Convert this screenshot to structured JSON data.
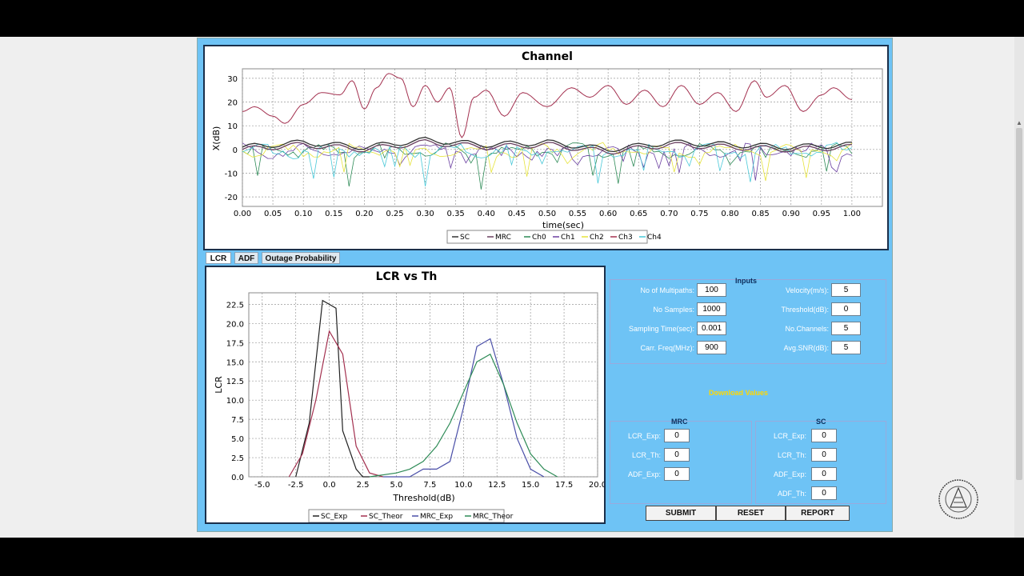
{
  "channel_chart": {
    "title": "Channel",
    "xlabel": "time(sec)",
    "ylabel": "X(dB)",
    "legend": [
      "SC",
      "MRC",
      "Ch0",
      "Ch1",
      "Ch2",
      "Ch3",
      "Ch4"
    ],
    "colors": {
      "SC": "#333333",
      "MRC": "#6a4060",
      "Ch0": "#2e8b57",
      "Ch1": "#6a3fa0",
      "Ch2": "#e6e33a",
      "Ch3": "#a3304f",
      "Ch4": "#48c8d8"
    },
    "xticks": [
      "0.00",
      "0.05",
      "0.10",
      "0.15",
      "0.20",
      "0.25",
      "0.30",
      "0.35",
      "0.40",
      "0.45",
      "0.50",
      "0.55",
      "0.60",
      "0.65",
      "0.70",
      "0.75",
      "0.80",
      "0.85",
      "0.90",
      "0.95",
      "1.00"
    ],
    "yticks": [
      "30",
      "20",
      "10",
      "0",
      "-10",
      "-20"
    ]
  },
  "chart_data": [
    {
      "type": "line",
      "title": "Channel",
      "xlabel": "time(sec)",
      "ylabel": "X(dB)",
      "xlim": [
        0,
        1.05
      ],
      "ylim": [
        -24,
        34
      ],
      "series": [
        {
          "name": "Ch3",
          "x": [
            0,
            0.02,
            0.05,
            0.07,
            0.1,
            0.13,
            0.16,
            0.18,
            0.2,
            0.22,
            0.24,
            0.26,
            0.28,
            0.3,
            0.32,
            0.34,
            0.36,
            0.38,
            0.4,
            0.43,
            0.46,
            0.5,
            0.54,
            0.57,
            0.6,
            0.63,
            0.66,
            0.69,
            0.72,
            0.75,
            0.78,
            0.81,
            0.84,
            0.86,
            0.89,
            0.92,
            0.95,
            0.97,
            1.0
          ],
          "y": [
            16,
            18,
            14,
            11,
            19,
            24,
            23,
            29,
            17,
            26,
            32,
            30,
            18,
            27,
            20,
            26,
            5,
            22,
            25,
            14,
            24,
            18,
            26,
            22,
            27,
            19,
            25,
            18,
            27,
            19,
            24,
            16,
            29,
            22,
            27,
            16,
            23,
            26,
            21
          ]
        },
        {
          "name": "SC",
          "x": [
            0,
            0.1,
            0.2,
            0.3,
            0.4,
            0.5,
            0.6,
            0.7,
            0.8,
            0.9,
            1.0
          ],
          "y": [
            1,
            3,
            1,
            4,
            2,
            3,
            0,
            3,
            2,
            1,
            2
          ]
        },
        {
          "name": "MRC",
          "x": [
            0,
            0.1,
            0.2,
            0.3,
            0.4,
            0.5,
            0.6,
            0.7,
            0.8,
            0.9,
            1.0
          ],
          "y": [
            0,
            2,
            0,
            3,
            1,
            2,
            -1,
            2,
            1,
            0,
            1
          ]
        }
      ]
    },
    {
      "type": "line",
      "title": "LCR vs Th",
      "xlabel": "Threshold(dB)",
      "ylabel": "LCR",
      "xlim": [
        -6,
        20
      ],
      "ylim": [
        0,
        24
      ],
      "series": [
        {
          "name": "SC_Exp",
          "x": [
            -2.5,
            -1.5,
            -0.5,
            0.5,
            1.0,
            2.0,
            2.5,
            3.0
          ],
          "y": [
            0,
            7,
            23,
            22,
            6,
            1,
            0,
            0
          ]
        },
        {
          "name": "SC_Theor",
          "x": [
            -3,
            -2,
            -1,
            0,
            1,
            2,
            3,
            4
          ],
          "y": [
            0,
            3,
            10,
            19,
            16,
            4,
            0.5,
            0
          ]
        },
        {
          "name": "MRC_Exp",
          "x": [
            4,
            6,
            7,
            8,
            9,
            10,
            11,
            12,
            13,
            14,
            15,
            16
          ],
          "y": [
            0,
            0,
            1,
            1,
            2,
            9,
            17,
            18,
            12,
            5,
            1,
            0
          ]
        },
        {
          "name": "MRC_Theor",
          "x": [
            3,
            5,
            6,
            7,
            8,
            9,
            10,
            11,
            12,
            13,
            14,
            15,
            16,
            17
          ],
          "y": [
            0,
            0.5,
            1,
            2,
            4,
            7,
            11,
            15,
            16,
            12,
            7,
            3,
            1,
            0
          ]
        }
      ]
    }
  ],
  "lcr_chart": {
    "title": "LCR vs Th",
    "xlabel": "Threshold(dB)",
    "ylabel": "LCR",
    "legend": [
      "SC_Exp",
      "SC_Theor",
      "MRC_Exp",
      "MRC_Theor"
    ],
    "colors": {
      "SC_Exp": "#222222",
      "SC_Theor": "#a3304f",
      "MRC_Exp": "#4a4fa8",
      "MRC_Theor": "#2e8b57"
    },
    "xticks": [
      "-5.0",
      "-2.5",
      "0.0",
      "2.5",
      "5.0",
      "7.5",
      "10.0",
      "12.5",
      "15.0",
      "17.5",
      "20.0"
    ],
    "yticks": [
      "22.5",
      "20.0",
      "17.5",
      "15.0",
      "12.5",
      "10.0",
      "7.5",
      "5.0",
      "2.5",
      "0.0"
    ]
  },
  "tabs": [
    "LCR",
    "ADF",
    "Outage Probability"
  ],
  "inputs": {
    "title": "Inputs",
    "multipaths_label": "No of Multipaths:",
    "multipaths": "100",
    "samples_label": "No Samples:",
    "samples": "1000",
    "sampling_label": "Sampling Time(sec):",
    "sampling": "0.001",
    "carr_label": "Carr. Freq(MHz):",
    "carr": "900",
    "velocity_label": "Velocity(m/s):",
    "velocity": "5",
    "threshold_label": "Threshold(dB):",
    "threshold": "0",
    "channels_label": "No.Channels:",
    "channels": "5",
    "snr_label": "Avg.SNR(dB):",
    "snr": "5"
  },
  "download_label": "Download Values",
  "mrc": {
    "title": "MRC",
    "lcr_exp_label": "LCR_Exp:",
    "lcr_exp": "0",
    "lcr_th_label": "LCR_Th:",
    "lcr_th": "0",
    "adf_exp_label": "ADF_Exp:",
    "adf_exp": "0"
  },
  "sc": {
    "title": "SC",
    "lcr_exp_label": "LCR_Exp:",
    "lcr_exp": "0",
    "lcr_th_label": "LCR_Th:",
    "lcr_th": "0",
    "adf_exp_label": "ADF_Exp:",
    "adf_exp": "0",
    "adf_th_label": "ADF_Th:",
    "adf_th": "0"
  },
  "buttons": {
    "submit": "SUBMIT",
    "reset": "RESET",
    "report": "REPORT"
  }
}
